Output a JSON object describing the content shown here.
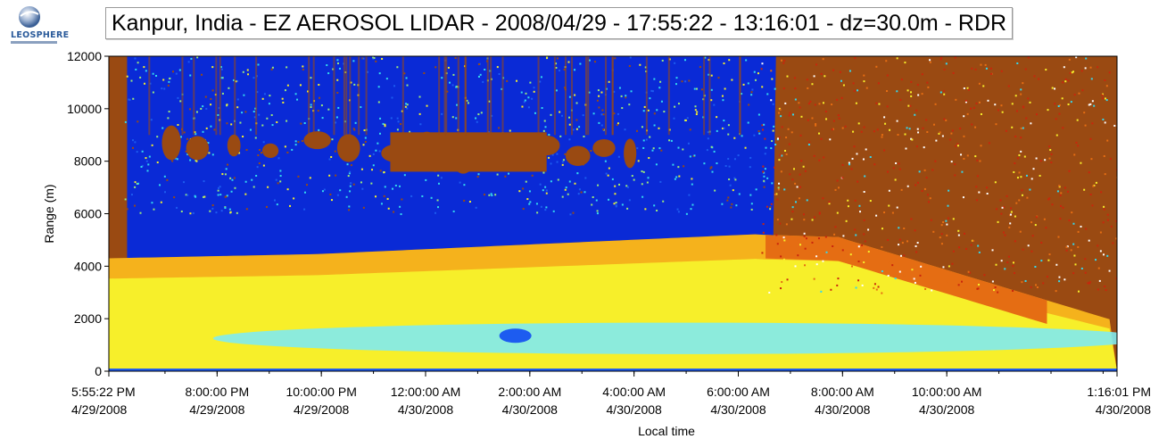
{
  "header": {
    "logo_text": "LEOSPHERE",
    "title": "Kanpur, India - EZ AEROSOL LIDAR - 2008/04/29 - 17:55:22 - 13:16:01 - dz=30.0m - RDR"
  },
  "chart_data": {
    "type": "heatmap",
    "title": "Kanpur, India - EZ AEROSOL LIDAR - 2008/04/29 - 17:55:22 - 13:16:01 - dz=30.0m - RDR",
    "xlabel": "Local time",
    "ylabel": "Range (m)",
    "ylim": [
      0,
      12000
    ],
    "xlim": [
      "4/29/2008 5:55:22 PM",
      "4/30/2008 1:16:01 PM"
    ],
    "y_ticks": [
      0,
      2000,
      4000,
      6000,
      8000,
      10000,
      12000
    ],
    "x_ticks": [
      {
        "time": "5:55:22 PM",
        "date": "4/29/2008",
        "hours": 0.0
      },
      {
        "time": "8:00:00 PM",
        "date": "4/29/2008",
        "hours": 2.0772
      },
      {
        "time": "10:00:00 PM",
        "date": "4/29/2008",
        "hours": 4.0772
      },
      {
        "time": "12:00:00 AM",
        "date": "4/30/2008",
        "hours": 6.0772
      },
      {
        "time": "2:00:00 AM",
        "date": "4/30/2008",
        "hours": 8.0772
      },
      {
        "time": "4:00:00 AM",
        "date": "4/30/2008",
        "hours": 10.0772
      },
      {
        "time": "6:00:00 AM",
        "date": "4/30/2008",
        "hours": 12.0772
      },
      {
        "time": "8:00:00 AM",
        "date": "4/30/2008",
        "hours": 14.0772
      },
      {
        "time": "10:00:00 AM",
        "date": "4/30/2008",
        "hours": 16.0772
      },
      {
        "time": "1:16:01 PM",
        "date": "4/30/2008",
        "hours": 19.3442
      }
    ],
    "x_end_hours": 19.3442,
    "colors": {
      "deep_blue": "#0a2ad6",
      "blue": "#1d5cf0",
      "cyan": "#33d8ee",
      "light_cyan": "#7feaf0",
      "green": "#9be87a",
      "yellow": "#f7ef2a",
      "orange": "#f5b21c",
      "dark_orange": "#e56d13",
      "red": "#c9260c",
      "brown": "#9a4a12"
    },
    "regions_description": [
      "Aerosol boundary layer (yellow/orange) from 0 to about 4300-5200 m",
      "Clear air (blue) above the boundary layer until about 7:00 AM",
      "Cloud patches (brown) near 8000-9000 m between about 6:30 PM and 3:30 AM",
      "Noisy daytime signal (brown/red) after about 7:00 AM",
      "Light-cyan band near 1000-1500 m between about 10:00 PM and 10:00 AM"
    ]
  }
}
